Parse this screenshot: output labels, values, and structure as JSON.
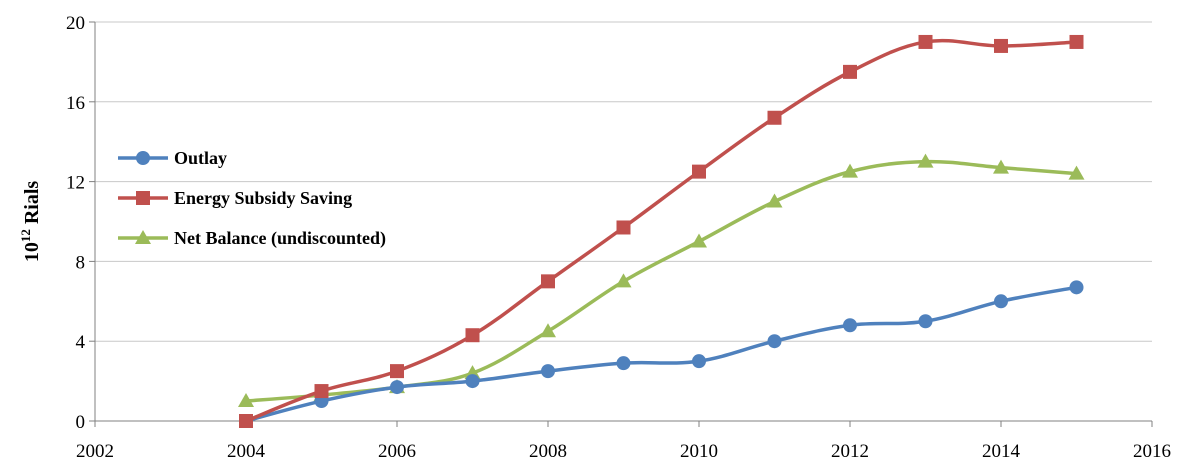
{
  "chart_data": {
    "type": "line",
    "title": "",
    "xlabel": "",
    "ylabel": "10",
    "ylabel_sup": "12",
    "ylabel_rest": " Rials",
    "xlim": [
      2002,
      2016
    ],
    "ylim": [
      0,
      20
    ],
    "x_ticks": [
      2002,
      2004,
      2006,
      2008,
      2010,
      2012,
      2014,
      2016
    ],
    "y_ticks": [
      0,
      4,
      8,
      12,
      16,
      20
    ],
    "x_tick_labels": [
      "2002",
      "2004",
      "2006",
      "2008",
      "2010",
      "2012",
      "2014",
      "2016"
    ],
    "y_tick_labels": [
      "0",
      "4",
      "8",
      "12",
      "16",
      "20"
    ],
    "grid": "horizontal",
    "legend_position": "left",
    "series": [
      {
        "name": "Outlay",
        "marker": "circle",
        "color": "#4f81bd",
        "x": [
          2004,
          2005,
          2006,
          2007,
          2008,
          2009,
          2010,
          2011,
          2012,
          2013,
          2014,
          2015
        ],
        "values": [
          0,
          1.0,
          1.7,
          2.0,
          2.5,
          2.9,
          3.0,
          4.0,
          4.8,
          5.0,
          6.0,
          6.7
        ]
      },
      {
        "name": "Energy Subsidy Saving",
        "marker": "square",
        "color": "#c0504d",
        "x": [
          2004,
          2005,
          2006,
          2007,
          2008,
          2009,
          2010,
          2011,
          2012,
          2013,
          2014,
          2015
        ],
        "values": [
          0,
          1.5,
          2.5,
          4.3,
          7.0,
          9.7,
          12.5,
          15.2,
          17.5,
          19.0,
          18.8,
          19.0
        ]
      },
      {
        "name": "Net Balance (undiscounted)",
        "marker": "triangle",
        "color": "#9bbb59",
        "x": [
          2004,
          2005,
          2006,
          2007,
          2008,
          2009,
          2010,
          2011,
          2012,
          2013,
          2014,
          2015
        ],
        "values": [
          1.0,
          1.3,
          1.7,
          2.4,
          4.5,
          7.0,
          9.0,
          11.0,
          12.5,
          13.0,
          12.7,
          12.4
        ]
      }
    ]
  }
}
